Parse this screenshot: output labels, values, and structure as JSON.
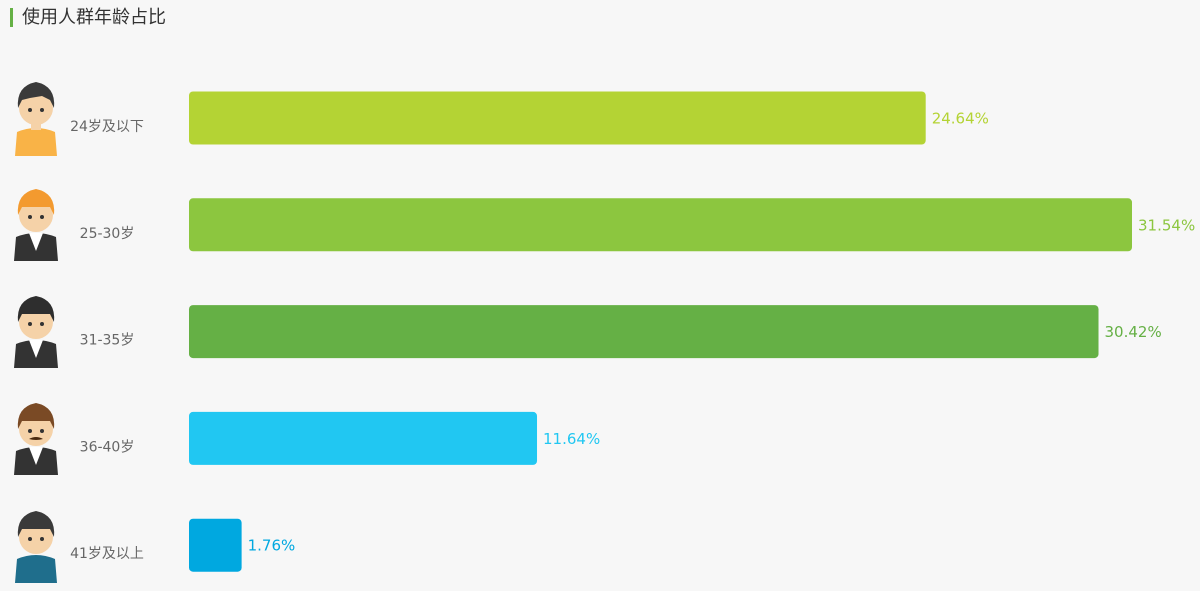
{
  "chart_data": {
    "type": "hbar",
    "title": "使用人群年龄占比",
    "categories": [
      "24岁及以下",
      "25-30岁",
      "31-35岁",
      "36-40岁",
      "41岁及以上"
    ],
    "values": [
      24.64,
      31.54,
      30.42,
      11.64,
      1.76
    ],
    "value_labels": [
      "24.64%",
      "31.54%",
      "30.42%",
      "11.64%",
      "1.76%"
    ],
    "colors": [
      "#b4d334",
      "#8cc63f",
      "#65b045",
      "#21c7f2",
      "#00a8e0"
    ]
  }
}
